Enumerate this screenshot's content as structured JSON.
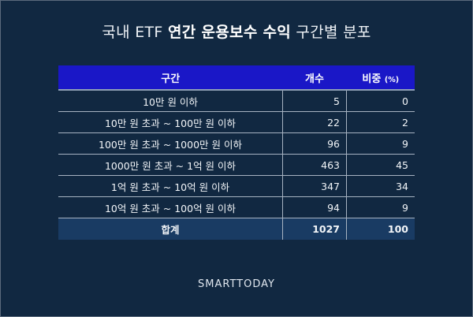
{
  "title": {
    "prefix": "국내 ETF ",
    "bold": "연간 운용보수 수익",
    "suffix": " 구간별 분포"
  },
  "table": {
    "headers": {
      "range": "구간",
      "count": "개수",
      "share": "비중",
      "share_unit": "(%)"
    },
    "rows": [
      {
        "range": "10만 원 이하",
        "count": "5",
        "share": "0"
      },
      {
        "range": "10만 원 초과 ~ 100만 원 이하",
        "count": "22",
        "share": "2"
      },
      {
        "range": "100만 원 초과 ~ 1000만 원 이하",
        "count": "96",
        "share": "9"
      },
      {
        "range": "1000만 원 초과 ~ 1억 원 이하",
        "count": "463",
        "share": "45"
      },
      {
        "range": "1억 원 초과 ~ 10억 원 이하",
        "count": "347",
        "share": "34"
      },
      {
        "range": "10억 원 초과 ~ 100억 원 이하",
        "count": "94",
        "share": "9"
      }
    ],
    "total": {
      "range": "합계",
      "count": "1027",
      "share": "100"
    }
  },
  "logo": "SMARTTODAY",
  "colors": {
    "background": "#112841",
    "header": "#1a17c7",
    "total_row": "#193b63"
  }
}
